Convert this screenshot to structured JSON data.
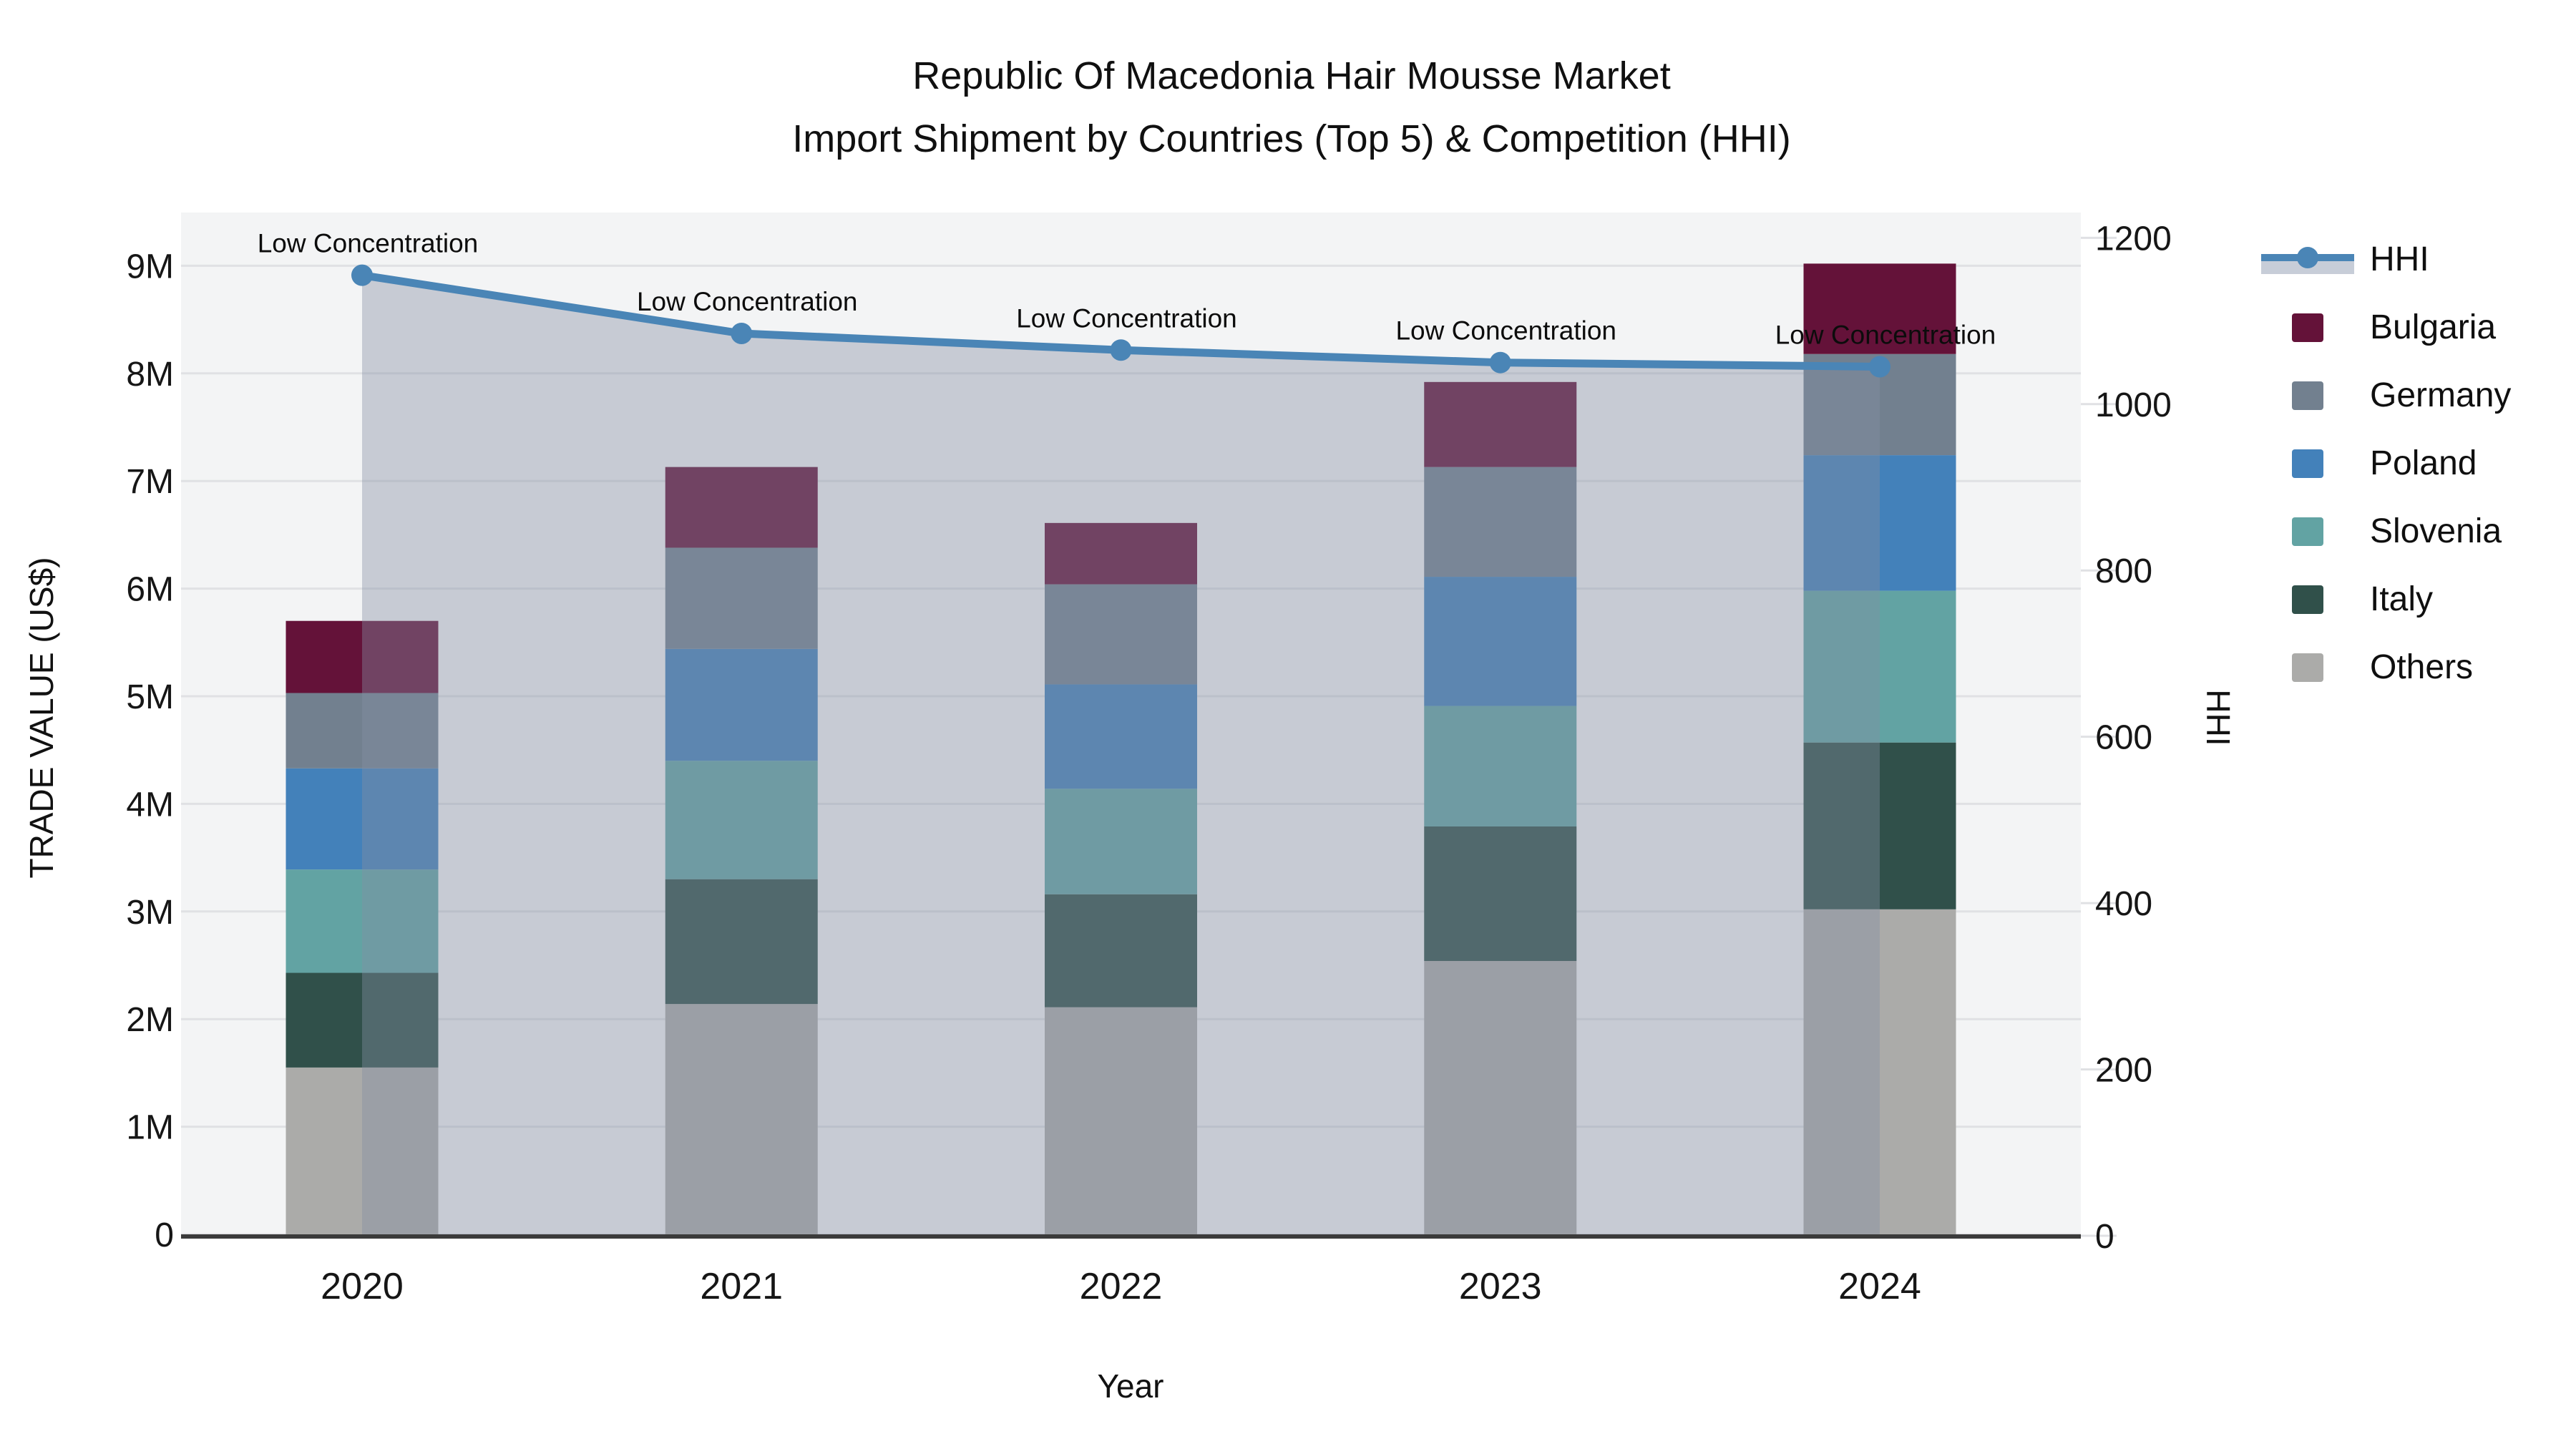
{
  "title": {
    "line1": "Republic Of Macedonia Hair Mousse Market",
    "line2": "Import Shipment by Countries (Top 5) & Competition (HHI)"
  },
  "legend": {
    "items": [
      {
        "label": "HHI",
        "type": "line"
      },
      {
        "label": "Bulgaria",
        "type": "square"
      },
      {
        "label": "Germany",
        "type": "square"
      },
      {
        "label": "Poland",
        "type": "square"
      },
      {
        "label": "Slovenia",
        "type": "square"
      },
      {
        "label": "Italy",
        "type": "square"
      },
      {
        "label": "Others",
        "type": "square"
      }
    ]
  },
  "chart_data": {
    "type": "bar+line",
    "title": "Republic Of Macedonia Hair Mousse Market — Import Shipment by Countries (Top 5) & Competition (HHI)",
    "x": [
      "2020",
      "2021",
      "2022",
      "2023",
      "2024"
    ],
    "xlabel": "Year",
    "bar_value_unit": "million US$",
    "stack_order": "bottom to top",
    "series": [
      {
        "name": "Others",
        "color": "#ABABA9",
        "values": [
          1.55,
          2.14,
          2.11,
          2.54,
          3.02
        ]
      },
      {
        "name": "Italy",
        "color": "#30504A",
        "values": [
          0.88,
          1.16,
          1.05,
          1.25,
          1.55
        ]
      },
      {
        "name": "Slovenia",
        "color": "#62A3A3",
        "values": [
          0.96,
          1.1,
          0.98,
          1.12,
          1.41
        ]
      },
      {
        "name": "Poland",
        "color": "#4381BA",
        "values": [
          0.94,
          1.04,
          0.97,
          1.2,
          1.26
        ]
      },
      {
        "name": "Germany",
        "color": "#72808F",
        "values": [
          0.7,
          0.94,
          0.93,
          1.02,
          0.94
        ]
      },
      {
        "name": "Bulgaria",
        "color": "#641239",
        "values": [
          0.67,
          0.75,
          0.57,
          0.79,
          0.84
        ]
      }
    ],
    "bar_totals": [
      5.7,
      7.13,
      6.61,
      7.92,
      9.02
    ],
    "line_series": {
      "name": "HHI",
      "axis": "right",
      "color": "#4A85B6",
      "area_fill_color": "rgba(132,142,162,0.40)",
      "values": [
        1155,
        1085,
        1065,
        1050,
        1045
      ],
      "point_annotation": "Low Concentration"
    },
    "y_left": {
      "label": "TRADE VALUE (US$)",
      "tick_labels": [
        "0",
        "1M",
        "2M",
        "3M",
        "4M",
        "5M",
        "6M",
        "7M",
        "8M",
        "9M"
      ],
      "tick_values": [
        0,
        1,
        2,
        3,
        4,
        5,
        6,
        7,
        8,
        9
      ],
      "range": [
        0,
        9.5
      ]
    },
    "y_right": {
      "label": "HHI",
      "tick_labels": [
        "0",
        "200",
        "400",
        "600",
        "800",
        "1000",
        "1200"
      ],
      "tick_values": [
        0,
        200,
        400,
        600,
        800,
        1000,
        1200
      ],
      "range": [
        0,
        1230
      ]
    },
    "style": {
      "plot_background": "#F3F4F5",
      "gridline_color": "#E0E1E4",
      "axis_line_color": "#3B3B3B",
      "tick_label_color": "#161616",
      "annotation_color": "#0c0c0c",
      "grid": "horizontal only",
      "legend_position": "right"
    }
  }
}
